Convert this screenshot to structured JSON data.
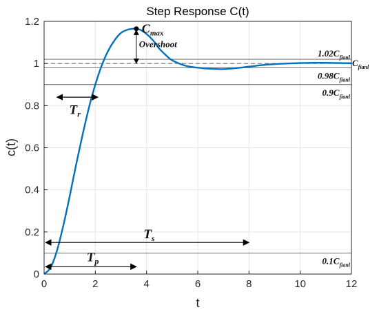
{
  "chart_data": {
    "type": "line",
    "title": "Step Response C(t)",
    "xlabel": "t",
    "ylabel": "c(t)",
    "xlim": [
      0,
      12
    ],
    "ylim": [
      0,
      1.2
    ],
    "grid": true,
    "xticks": [
      "0",
      "2",
      "4",
      "6",
      "8",
      "10",
      "12"
    ],
    "yticks": [
      "0",
      "0.2",
      "0.4",
      "0.6",
      "0.8",
      "1",
      "1.2"
    ],
    "series": [
      {
        "color": "#0072BD",
        "x": [
          0,
          0.25,
          0.5,
          0.75,
          1,
          1.25,
          1.5,
          1.75,
          2,
          2.25,
          2.5,
          2.75,
          3,
          3.25,
          3.5,
          3.6,
          3.75,
          4,
          4.25,
          4.5,
          4.75,
          5,
          5.5,
          6,
          6.5,
          7,
          7.2,
          7.5,
          8,
          8.5,
          9,
          9.5,
          10,
          10.5,
          11,
          11.5,
          12
        ],
        "y": [
          0,
          0.03,
          0.11,
          0.23,
          0.37,
          0.52,
          0.66,
          0.79,
          0.9,
          0.99,
          1.06,
          1.11,
          1.145,
          1.16,
          1.165,
          1.165,
          1.16,
          1.14,
          1.11,
          1.07,
          1.04,
          1.015,
          0.99,
          0.98,
          0.975,
          0.973,
          0.975,
          0.978,
          0.985,
          0.992,
          0.997,
          1.0,
          1.002,
          1.003,
          1.003,
          1.002,
          1.001
        ]
      }
    ],
    "reference_lines": [
      {
        "y": 1.02,
        "label_main": "1.02C",
        "label_sub": "fianl",
        "style": "solid"
      },
      {
        "y": 1.0,
        "label_main": "C",
        "label_sub": "fianl",
        "style": "dashed"
      },
      {
        "y": 0.98,
        "label_main": "0.98C",
        "label_sub": "fianl",
        "style": "solid"
      },
      {
        "y": 0.9,
        "label_main": "0.9C",
        "label_sub": "fianl",
        "style": "solid"
      },
      {
        "y": 0.1,
        "label_main": "0.1C",
        "label_sub": "fianl",
        "style": "solid"
      }
    ],
    "annotations": {
      "peak": {
        "x": 3.6,
        "y": 1.165,
        "label_main": "C",
        "label_sub": "max"
      },
      "overshoot": {
        "label": "Overshoot",
        "x": 3.6,
        "y_top": 1.165,
        "y_bottom": 1.0
      },
      "tr": {
        "label_main": "T",
        "label_sub": "r",
        "x_start": 0.5,
        "x_end": 2.1,
        "y": 0.84
      },
      "ts": {
        "label_main": "T",
        "label_sub": "s",
        "x_start": 0,
        "x_end": 8,
        "y": 0.15
      },
      "tp": {
        "label_main": "T",
        "label_sub": "p",
        "x_start": 0,
        "x_end": 3.6,
        "y": 0.035
      }
    }
  }
}
